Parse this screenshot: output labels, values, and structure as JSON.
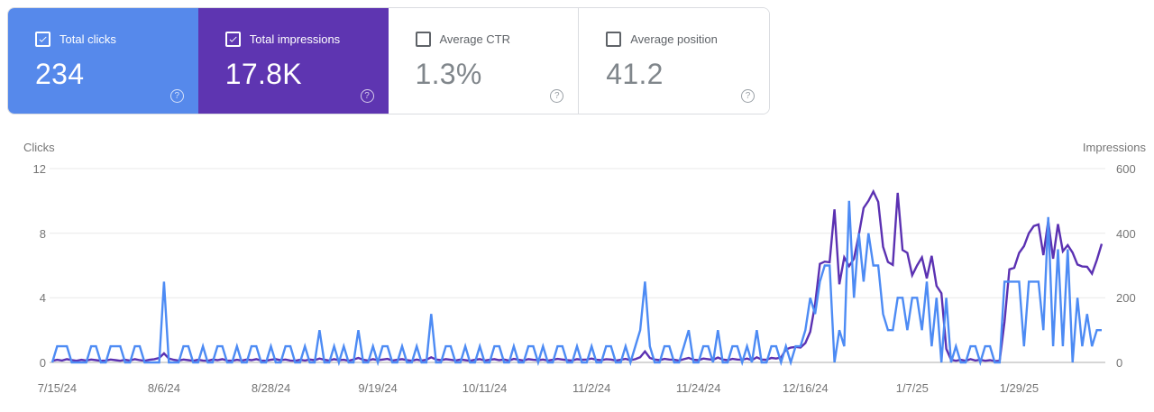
{
  "cards": [
    {
      "label": "Total clicks",
      "value": "234",
      "selected": true,
      "color": "#5689EB"
    },
    {
      "label": "Total impressions",
      "value": "17.8K",
      "selected": true,
      "color": "#5E35B1"
    },
    {
      "label": "Average CTR",
      "value": "1.3%",
      "selected": false,
      "color": "#ffffff"
    },
    {
      "label": "Average position",
      "value": "41.2",
      "selected": false,
      "color": "#ffffff"
    }
  ],
  "help_icon_glyph": "?",
  "chart_data": {
    "type": "line",
    "left_axis": {
      "title": "Clicks",
      "ticks": [
        "12",
        "8",
        "4",
        "0"
      ],
      "range": [
        0,
        12
      ]
    },
    "right_axis": {
      "title": "Impressions",
      "ticks": [
        "600",
        "400",
        "200",
        "0"
      ],
      "range": [
        0,
        600
      ]
    },
    "grid": true,
    "legend_position": "none",
    "x_ticks": [
      {
        "label": "7/15/24",
        "index": 1
      },
      {
        "label": "8/6/24",
        "index": 23
      },
      {
        "label": "8/28/24",
        "index": 45
      },
      {
        "label": "9/19/24",
        "index": 67
      },
      {
        "label": "10/11/24",
        "index": 89
      },
      {
        "label": "11/2/24",
        "index": 111
      },
      {
        "label": "11/24/24",
        "index": 133
      },
      {
        "label": "12/16/24",
        "index": 155
      },
      {
        "label": "1/7/25",
        "index": 177
      },
      {
        "label": "1/29/25",
        "index": 199
      }
    ],
    "series": [
      {
        "name": "Clicks",
        "axis": "left",
        "color": "#4D8BF4",
        "values": [
          0,
          1,
          1,
          1,
          0,
          0,
          0,
          0,
          1,
          1,
          0,
          0,
          1,
          1,
          1,
          0,
          0,
          1,
          1,
          0,
          0,
          0,
          0,
          5,
          0,
          0,
          0,
          1,
          1,
          0,
          0,
          1,
          0,
          0,
          1,
          1,
          0,
          0,
          1,
          0,
          0,
          1,
          1,
          0,
          0,
          1,
          0,
          0,
          1,
          1,
          0,
          0,
          1,
          0,
          0,
          2,
          0,
          0,
          1,
          0,
          1,
          0,
          0,
          2,
          0,
          0,
          1,
          0,
          1,
          1,
          0,
          0,
          1,
          0,
          0,
          1,
          0,
          0,
          3,
          0,
          0,
          1,
          1,
          0,
          0,
          1,
          0,
          0,
          1,
          0,
          0,
          1,
          1,
          0,
          0,
          1,
          0,
          0,
          1,
          1,
          0,
          1,
          0,
          0,
          1,
          1,
          0,
          0,
          1,
          0,
          0,
          1,
          0,
          0,
          1,
          1,
          0,
          0,
          1,
          0,
          1,
          2,
          5,
          1,
          0,
          0,
          1,
          1,
          0,
          0,
          1,
          2,
          0,
          0,
          1,
          1,
          0,
          2,
          0,
          0,
          1,
          1,
          0,
          1,
          0,
          2,
          0,
          0,
          1,
          1,
          0,
          1,
          0,
          1,
          1,
          2,
          4,
          3,
          5,
          6,
          6,
          0,
          2,
          1,
          10,
          4,
          8,
          5,
          8,
          6,
          6,
          3,
          2,
          2,
          4,
          4,
          2,
          4,
          4,
          2,
          5,
          1,
          4,
          0,
          4,
          0,
          1,
          0,
          0,
          1,
          1,
          0,
          1,
          1,
          0,
          0,
          5,
          5,
          5,
          5,
          1,
          5,
          5,
          5,
          2,
          9,
          1,
          7,
          1,
          7,
          0,
          4,
          1,
          3,
          1,
          2,
          2
        ]
      },
      {
        "name": "Impressions",
        "axis": "right",
        "color": "#5B31B2",
        "values": [
          5,
          8,
          6,
          10,
          7,
          5,
          8,
          6,
          9,
          7,
          5,
          6,
          9,
          7,
          5,
          8,
          6,
          10,
          7,
          5,
          8,
          10,
          14,
          28,
          12,
          8,
          6,
          9,
          7,
          5,
          8,
          6,
          5,
          9,
          7,
          10,
          6,
          5,
          8,
          6,
          9,
          7,
          10,
          6,
          5,
          8,
          10,
          7,
          9,
          6,
          5,
          8,
          6,
          9,
          7,
          12,
          8,
          6,
          10,
          7,
          8,
          5,
          9,
          14,
          8,
          6,
          10,
          7,
          9,
          11,
          6,
          8,
          10,
          7,
          5,
          9,
          6,
          8,
          16,
          9,
          7,
          10,
          8,
          6,
          9,
          7,
          5,
          8,
          10,
          6,
          8,
          10,
          7,
          9,
          6,
          11,
          8,
          6,
          10,
          8,
          7,
          9,
          6,
          8,
          11,
          9,
          7,
          6,
          10,
          8,
          9,
          12,
          8,
          7,
          10,
          9,
          6,
          8,
          11,
          7,
          10,
          16,
          34,
          14,
          9,
          7,
          11,
          9,
          8,
          6,
          10,
          14,
          8,
          7,
          12,
          10,
          8,
          15,
          9,
          7,
          11,
          9,
          8,
          12,
          7,
          16,
          9,
          8,
          14,
          12,
          15,
          40,
          46,
          48,
          46,
          60,
          95,
          180,
          305,
          312,
          310,
          474,
          242,
          325,
          298,
          321,
          395,
          478,
          500,
          529,
          497,
          358,
          311,
          302,
          525,
          348,
          339,
          270,
          300,
          325,
          260,
          330,
          237,
          214,
          42,
          8,
          5,
          8,
          5,
          10,
          6,
          8,
          5,
          7,
          4,
          5,
          126,
          288,
          293,
          339,
          360,
          400,
          422,
          427,
          332,
          438,
          321,
          428,
          344,
          363,
          340,
          303,
          297,
          296,
          275,
          317,
          367
        ]
      }
    ]
  }
}
